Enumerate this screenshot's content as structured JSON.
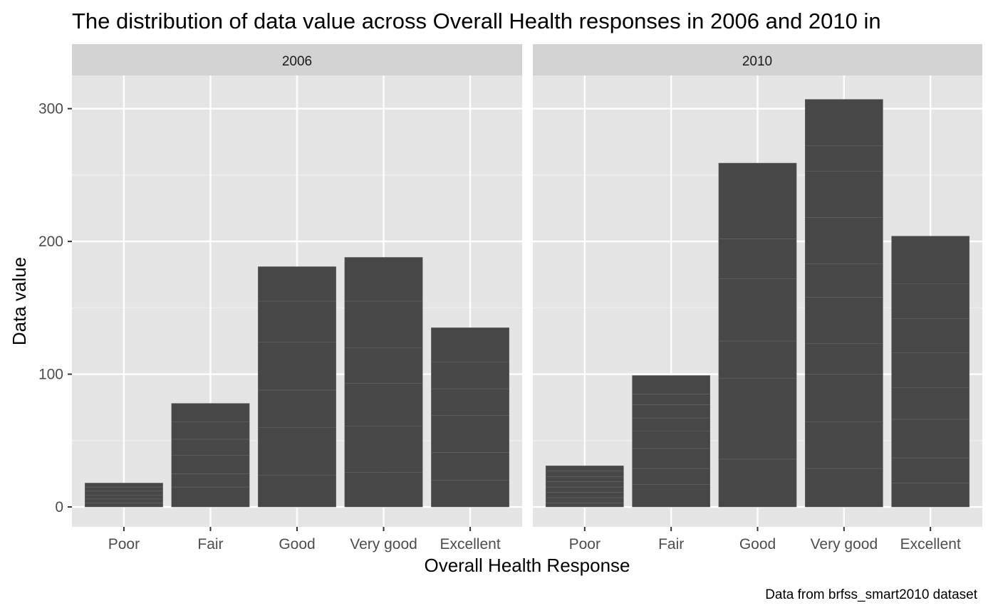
{
  "chart_data": {
    "type": "bar",
    "title": "The distribution of data value across Overall Health responses in 2006 and 2010 in",
    "xlabel": "Overall Health Response",
    "ylabel": "Data value",
    "caption": "Data from brfss_smart2010 dataset",
    "categories": [
      "Poor",
      "Fair",
      "Good",
      "Very good",
      "Excellent"
    ],
    "ylim": [
      -15,
      325
    ],
    "yticks": [
      0,
      100,
      200,
      300
    ],
    "grid": true,
    "legend": "none",
    "bar_color": "#474747",
    "panel_bg": "#e5e5e5",
    "strip_bg": "#d3d3d3",
    "panels": [
      {
        "strip": "2006",
        "stacks": [
          [
            3,
            3,
            3,
            3,
            3,
            3
          ],
          [
            15,
            10,
            14,
            12,
            13,
            14
          ],
          [
            24,
            36,
            28,
            36,
            31,
            26
          ],
          [
            26,
            35,
            32,
            27,
            35,
            33
          ],
          [
            20,
            21,
            28,
            20,
            20,
            26
          ]
        ]
      },
      {
        "strip": "2010",
        "stacks": [
          [
            3,
            4,
            4,
            4,
            4,
            4,
            4,
            4
          ],
          [
            17,
            12,
            15,
            13,
            10,
            10,
            8,
            14
          ],
          [
            36,
            61,
            28,
            47,
            30,
            57
          ],
          [
            29,
            35,
            36,
            23,
            35,
            25,
            35,
            35,
            19,
            35
          ],
          [
            18,
            19,
            29,
            24,
            26,
            26,
            26,
            36
          ]
        ]
      }
    ]
  }
}
